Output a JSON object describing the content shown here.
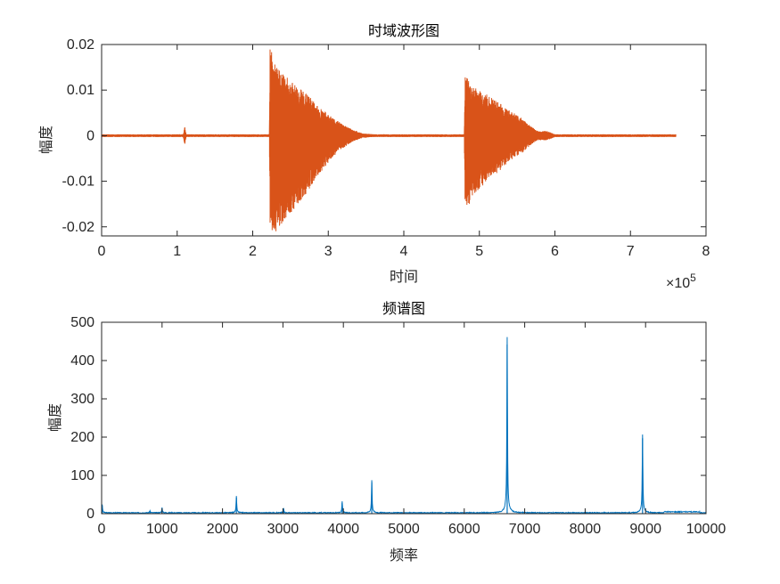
{
  "chart_data": [
    {
      "type": "line",
      "title": "时域波形图",
      "xlabel": "时间",
      "ylabel": "幅度",
      "xlim": [
        0,
        800000
      ],
      "ylim": [
        -0.022,
        0.02
      ],
      "x_ticks": [
        "0",
        "1",
        "2",
        "3",
        "4",
        "5",
        "6",
        "7",
        "8"
      ],
      "x_tick_values": [
        0,
        100000,
        200000,
        300000,
        400000,
        500000,
        600000,
        700000,
        800000
      ],
      "x_exponent_base": "×10",
      "x_exponent_power": "5",
      "y_ticks": [
        "-0.02",
        "-0.01",
        "0",
        "0.01",
        "0.02"
      ],
      "y_tick_values": [
        -0.02,
        -0.01,
        0,
        0.01,
        0.02
      ],
      "color": "#D95319",
      "grid": false,
      "series": [
        {
          "envelope_x": [
            0,
            108000,
            110000,
            112000,
            222000,
            223000,
            228000,
            235000,
            250000,
            270000,
            290000,
            310000,
            330000,
            345000,
            360000,
            480000,
            481000,
            485000,
            495000,
            510000,
            525000,
            540000,
            555000,
            565000,
            575000,
            580000,
            590000,
            600000,
            760000
          ],
          "envelope_upper": [
            0.0003,
            0.0003,
            0.002,
            0.0003,
            0.0003,
            0.02,
            0.016,
            0.0145,
            0.012,
            0.0095,
            0.006,
            0.0035,
            0.0015,
            0.0005,
            0.0003,
            0.0003,
            0.013,
            0.0125,
            0.0105,
            0.009,
            0.0075,
            0.0055,
            0.004,
            0.0025,
            0.0012,
            0.001,
            0.001,
            0.0003,
            0.0003
          ],
          "envelope_lower": [
            -0.0003,
            -0.0003,
            -0.002,
            -0.0003,
            -0.0003,
            -0.021,
            -0.022,
            -0.02,
            -0.017,
            -0.013,
            -0.008,
            -0.004,
            -0.0015,
            -0.0005,
            -0.0003,
            -0.0003,
            -0.017,
            -0.0155,
            -0.0125,
            -0.01,
            -0.008,
            -0.0055,
            -0.004,
            -0.0025,
            -0.0012,
            -0.001,
            -0.001,
            -0.0003,
            -0.0003
          ]
        }
      ]
    },
    {
      "type": "line",
      "title": "频谱图",
      "xlabel": "频率",
      "ylabel": "幅度",
      "xlim": [
        0,
        10000
      ],
      "ylim": [
        0,
        500
      ],
      "x_ticks": [
        "0",
        "1000",
        "2000",
        "3000",
        "4000",
        "5000",
        "6000",
        "7000",
        "8000",
        "9000",
        "10000"
      ],
      "x_tick_values": [
        0,
        1000,
        2000,
        3000,
        4000,
        5000,
        6000,
        7000,
        8000,
        9000,
        10000
      ],
      "y_ticks": [
        "0",
        "100",
        "200",
        "300",
        "400",
        "500"
      ],
      "y_tick_values": [
        0,
        100,
        200,
        300,
        400,
        500
      ],
      "color": "#0072BD",
      "grid": false,
      "series": [
        {
          "peaks": [
            {
              "freq": 10,
              "amp": 20
            },
            {
              "freq": 800,
              "amp": 5
            },
            {
              "freq": 1000,
              "amp": 13
            },
            {
              "freq": 2230,
              "amp": 42
            },
            {
              "freq": 3010,
              "amp": 12
            },
            {
              "freq": 3980,
              "amp": 28
            },
            {
              "freq": 4470,
              "amp": 82
            },
            {
              "freq": 6710,
              "amp": 442
            },
            {
              "freq": 8950,
              "amp": 197
            }
          ]
        }
      ]
    }
  ]
}
